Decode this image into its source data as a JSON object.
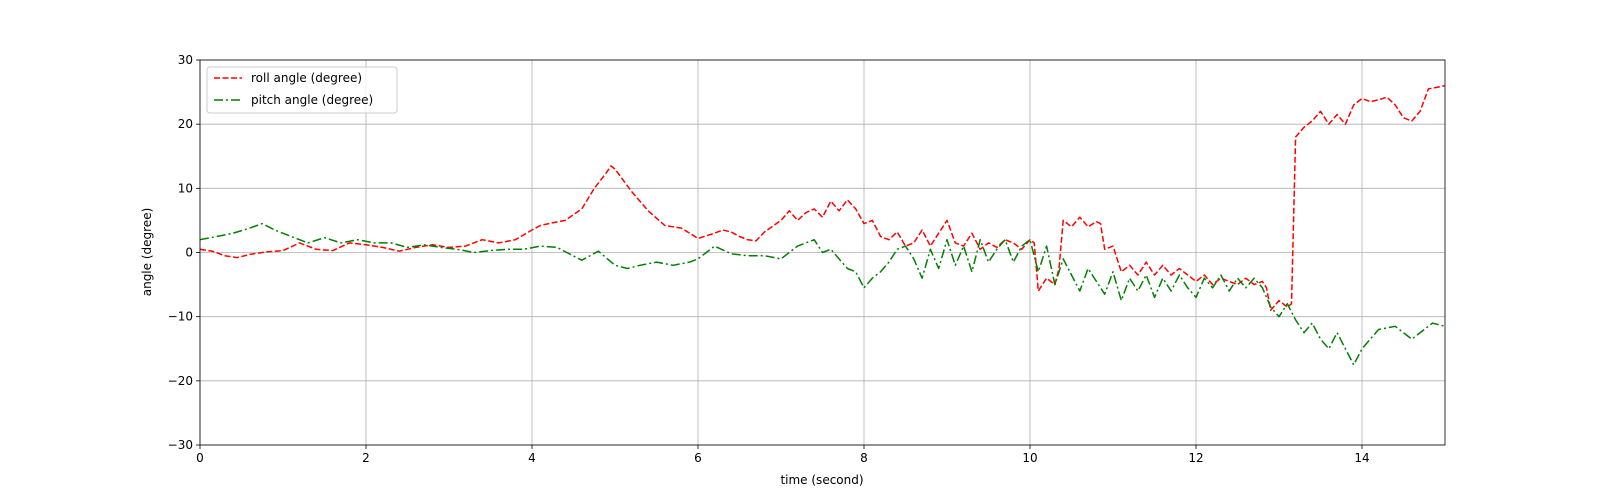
{
  "chart_data": {
    "type": "line",
    "xlabel": "time (second)",
    "ylabel": "angle (degree)",
    "xlim": [
      0,
      15
    ],
    "ylim": [
      -30,
      30
    ],
    "xticks": [
      0,
      2,
      4,
      6,
      8,
      10,
      12,
      14
    ],
    "yticks": [
      -30,
      -20,
      -10,
      0,
      10,
      20,
      30
    ],
    "grid": true,
    "legend_position": "top-left",
    "series": [
      {
        "name": "roll angle (degree)",
        "color": "#ff0000",
        "style": "dashed",
        "x": [
          0,
          0.15,
          0.3,
          0.45,
          0.6,
          0.8,
          1.0,
          1.2,
          1.4,
          1.6,
          1.8,
          2.0,
          2.2,
          2.4,
          2.5,
          2.6,
          2.8,
          3.0,
          3.2,
          3.4,
          3.6,
          3.8,
          4.0,
          4.1,
          4.2,
          4.4,
          4.6,
          4.75,
          4.9,
          4.95,
          5.0,
          5.2,
          5.4,
          5.6,
          5.8,
          6.0,
          6.2,
          6.3,
          6.4,
          6.5,
          6.6,
          6.7,
          6.8,
          7.0,
          7.1,
          7.2,
          7.3,
          7.4,
          7.5,
          7.6,
          7.7,
          7.8,
          7.9,
          8.0,
          8.1,
          8.2,
          8.3,
          8.4,
          8.5,
          8.6,
          8.7,
          8.8,
          8.9,
          9.0,
          9.1,
          9.2,
          9.3,
          9.4,
          9.5,
          9.6,
          9.7,
          9.8,
          9.9,
          10.0,
          10.05,
          10.1,
          10.2,
          10.3,
          10.35,
          10.4,
          10.5,
          10.6,
          10.7,
          10.8,
          10.85,
          10.9,
          11.0,
          11.1,
          11.2,
          11.3,
          11.4,
          11.5,
          11.6,
          11.7,
          11.8,
          11.9,
          12.0,
          12.1,
          12.2,
          12.3,
          12.4,
          12.5,
          12.6,
          12.7,
          12.8,
          12.85,
          12.9,
          13.0,
          13.1,
          13.15,
          13.2,
          13.3,
          13.4,
          13.5,
          13.6,
          13.7,
          13.8,
          13.9,
          14.0,
          14.1,
          14.2,
          14.3,
          14.4,
          14.5,
          14.6,
          14.7,
          14.8,
          15.0
        ],
        "y": [
          0.5,
          0.2,
          -0.5,
          -0.8,
          -0.3,
          0.1,
          0.3,
          1.5,
          0.5,
          0.3,
          1.5,
          1.2,
          0.8,
          0.2,
          0.5,
          0.8,
          1.2,
          0.8,
          1.0,
          2.0,
          1.5,
          2.0,
          3.5,
          4.2,
          4.5,
          5.0,
          6.8,
          10.0,
          12.5,
          13.5,
          13.0,
          9.5,
          6.5,
          4.2,
          3.8,
          2.2,
          3.0,
          3.5,
          3.2,
          2.5,
          2.0,
          1.8,
          3.2,
          5.0,
          6.5,
          5.0,
          6.2,
          6.8,
          5.5,
          8.0,
          6.5,
          8.2,
          6.8,
          4.5,
          5.0,
          2.5,
          2.0,
          3.2,
          1.0,
          1.5,
          3.5,
          1.0,
          3.0,
          5.0,
          1.5,
          1.0,
          3.0,
          0.5,
          1.5,
          0.8,
          2.0,
          1.5,
          0.5,
          2.0,
          1.5,
          -6.0,
          -4.0,
          -5.0,
          -2.5,
          5.0,
          4.0,
          5.5,
          4.0,
          4.8,
          4.5,
          0.5,
          1.0,
          -3.0,
          -2.0,
          -3.5,
          -1.5,
          -3.5,
          -2.0,
          -3.5,
          -2.5,
          -3.5,
          -4.5,
          -3.5,
          -5.0,
          -4.0,
          -4.5,
          -5.0,
          -4.0,
          -5.0,
          -4.5,
          -5.5,
          -9.0,
          -7.5,
          -8.5,
          -8.0,
          18.0,
          19.5,
          20.5,
          22.0,
          20.0,
          21.5,
          20.0,
          23.0,
          24.0,
          23.5,
          23.8,
          24.2,
          23.0,
          21.0,
          20.5,
          22.0,
          25.5,
          26.0
        ]
      },
      {
        "name": "pitch angle (degree)",
        "color": "#008000",
        "style": "dashdot",
        "x": [
          0,
          0.2,
          0.4,
          0.6,
          0.75,
          0.9,
          1.1,
          1.3,
          1.5,
          1.7,
          1.9,
          2.1,
          2.3,
          2.5,
          2.7,
          2.9,
          3.1,
          3.3,
          3.5,
          3.7,
          3.9,
          4.1,
          4.3,
          4.6,
          4.8,
          5.0,
          5.15,
          5.3,
          5.5,
          5.7,
          5.9,
          6.0,
          6.2,
          6.4,
          6.6,
          6.8,
          7.0,
          7.2,
          7.4,
          7.5,
          7.6,
          7.8,
          7.9,
          8.0,
          8.1,
          8.2,
          8.3,
          8.4,
          8.5,
          8.6,
          8.7,
          8.8,
          8.9,
          9.0,
          9.1,
          9.2,
          9.3,
          9.4,
          9.5,
          9.6,
          9.7,
          9.8,
          9.9,
          10.0,
          10.1,
          10.2,
          10.3,
          10.4,
          10.5,
          10.6,
          10.7,
          10.8,
          10.9,
          11.0,
          11.1,
          11.2,
          11.3,
          11.4,
          11.5,
          11.6,
          11.7,
          11.8,
          11.9,
          12.0,
          12.1,
          12.2,
          12.3,
          12.4,
          12.5,
          12.6,
          12.7,
          12.8,
          12.9,
          13.0,
          13.1,
          13.2,
          13.3,
          13.4,
          13.5,
          13.6,
          13.7,
          13.8,
          13.9,
          14.0,
          14.2,
          14.4,
          14.6,
          14.75,
          14.85,
          15.0
        ],
        "y": [
          2.0,
          2.5,
          3.0,
          3.8,
          4.5,
          3.5,
          2.5,
          1.5,
          2.3,
          1.5,
          2.0,
          1.5,
          1.5,
          0.8,
          1.2,
          0.8,
          0.5,
          0.0,
          0.3,
          0.5,
          0.5,
          1.0,
          0.8,
          -1.2,
          0.2,
          -2.0,
          -2.5,
          -2.0,
          -1.5,
          -2.0,
          -1.5,
          -1.0,
          1.0,
          -0.2,
          -0.5,
          -0.5,
          -1.0,
          1.0,
          2.0,
          0.0,
          0.5,
          -2.5,
          -3.0,
          -5.5,
          -4.0,
          -3.0,
          -1.5,
          0.5,
          1.0,
          -1.0,
          -4.0,
          0.5,
          -2.5,
          2.0,
          -2.0,
          1.0,
          -3.0,
          2.0,
          -1.5,
          0.5,
          2.0,
          -1.5,
          1.0,
          2.0,
          -3.0,
          1.0,
          -5.0,
          -1.0,
          -3.5,
          -6.0,
          -2.5,
          -4.5,
          -6.5,
          -3.0,
          -7.5,
          -4.0,
          -6.0,
          -3.5,
          -7.0,
          -4.0,
          -6.0,
          -3.5,
          -5.5,
          -7.0,
          -4.0,
          -5.5,
          -3.5,
          -6.0,
          -4.0,
          -5.5,
          -4.0,
          -5.5,
          -8.5,
          -10.0,
          -8.0,
          -10.5,
          -12.5,
          -11.0,
          -13.5,
          -15.0,
          -12.5,
          -15.0,
          -17.5,
          -15.0,
          -12.0,
          -11.5,
          -13.5,
          -12.0,
          -11.0,
          -11.5
        ]
      }
    ]
  }
}
